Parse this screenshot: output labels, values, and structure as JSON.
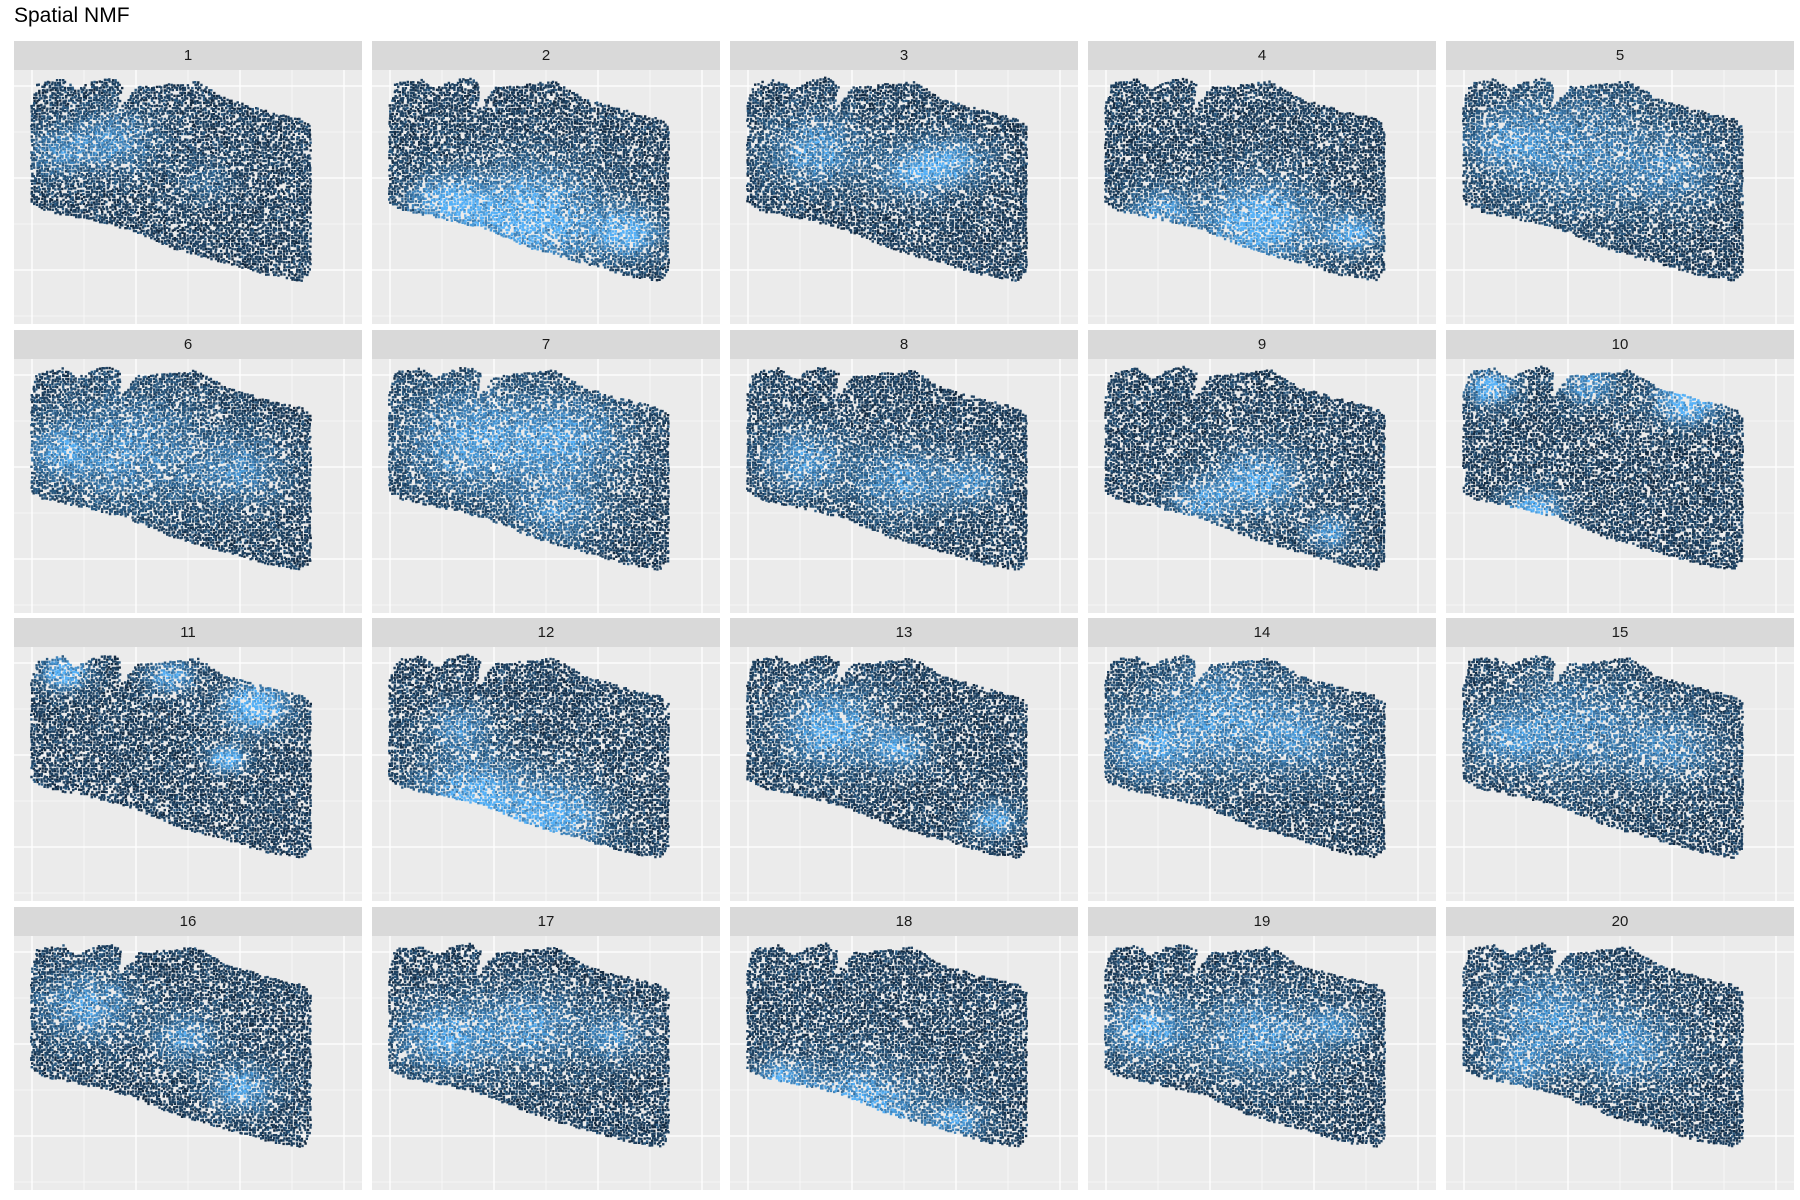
{
  "title": "Spatial NMF",
  "chart_data": {
    "type": "scatter",
    "title": "Spatial NMF",
    "xlabel": "",
    "ylabel": "",
    "grid": true,
    "legend": "none",
    "color_scale": {
      "low": "#132b43",
      "high": "#56b1f7"
    },
    "facets": [
      {
        "label": "1",
        "high_regions": [
          [
            0.3,
            0.3,
            0.18,
            0.5
          ],
          [
            0.1,
            0.35,
            0.14,
            0.45
          ],
          [
            0.62,
            0.5,
            0.12,
            0.25
          ]
        ]
      },
      {
        "label": "2",
        "high_regions": [
          [
            0.5,
            0.68,
            0.3,
            0.85
          ],
          [
            0.2,
            0.6,
            0.16,
            0.7
          ],
          [
            0.85,
            0.75,
            0.14,
            0.8
          ]
        ]
      },
      {
        "label": "3",
        "high_regions": [
          [
            0.25,
            0.35,
            0.2,
            0.6
          ],
          [
            0.6,
            0.45,
            0.16,
            0.6
          ],
          [
            0.75,
            0.4,
            0.14,
            0.55
          ]
        ]
      },
      {
        "label": "4",
        "high_regions": [
          [
            0.55,
            0.7,
            0.24,
            0.85
          ],
          [
            0.2,
            0.65,
            0.14,
            0.6
          ],
          [
            0.88,
            0.75,
            0.12,
            0.7
          ]
        ]
      },
      {
        "label": "5",
        "high_regions": [
          [
            0.4,
            0.35,
            0.35,
            0.45
          ],
          [
            0.75,
            0.45,
            0.22,
            0.4
          ],
          [
            0.15,
            0.3,
            0.18,
            0.4
          ]
        ]
      },
      {
        "label": "6",
        "high_regions": [
          [
            0.35,
            0.4,
            0.32,
            0.5
          ],
          [
            0.75,
            0.5,
            0.2,
            0.45
          ],
          [
            0.1,
            0.4,
            0.15,
            0.45
          ]
        ]
      },
      {
        "label": "7",
        "high_regions": [
          [
            0.3,
            0.35,
            0.3,
            0.6
          ],
          [
            0.65,
            0.35,
            0.26,
            0.55
          ],
          [
            0.6,
            0.7,
            0.2,
            0.45
          ]
        ]
      },
      {
        "label": "8",
        "high_regions": [
          [
            0.2,
            0.45,
            0.18,
            0.6
          ],
          [
            0.55,
            0.55,
            0.2,
            0.55
          ],
          [
            0.8,
            0.55,
            0.14,
            0.5
          ]
        ]
      },
      {
        "label": "9",
        "high_regions": [
          [
            0.55,
            0.55,
            0.18,
            0.7
          ],
          [
            0.35,
            0.65,
            0.14,
            0.55
          ],
          [
            0.8,
            0.8,
            0.1,
            0.6
          ]
        ]
      },
      {
        "label": "10",
        "high_regions": [
          [
            0.1,
            0.1,
            0.1,
            0.9
          ],
          [
            0.8,
            0.15,
            0.14,
            0.95
          ],
          [
            0.25,
            0.7,
            0.12,
            0.85
          ],
          [
            0.45,
            0.08,
            0.12,
            0.6
          ]
        ]
      },
      {
        "label": "11",
        "high_regions": [
          [
            0.8,
            0.25,
            0.14,
            0.95
          ],
          [
            0.12,
            0.08,
            0.1,
            0.85
          ],
          [
            0.7,
            0.5,
            0.08,
            0.9
          ],
          [
            0.5,
            0.1,
            0.1,
            0.7
          ]
        ]
      },
      {
        "label": "12",
        "high_regions": [
          [
            0.3,
            0.7,
            0.24,
            0.8
          ],
          [
            0.6,
            0.78,
            0.2,
            0.75
          ],
          [
            0.25,
            0.35,
            0.14,
            0.5
          ]
        ]
      },
      {
        "label": "13",
        "high_regions": [
          [
            0.3,
            0.35,
            0.22,
            0.7
          ],
          [
            0.55,
            0.45,
            0.12,
            0.6
          ],
          [
            0.88,
            0.8,
            0.1,
            0.7
          ]
        ]
      },
      {
        "label": "14",
        "high_regions": [
          [
            0.4,
            0.3,
            0.32,
            0.55
          ],
          [
            0.15,
            0.45,
            0.18,
            0.5
          ],
          [
            0.7,
            0.4,
            0.2,
            0.45
          ]
        ]
      },
      {
        "label": "15",
        "high_regions": [
          [
            0.4,
            0.35,
            0.3,
            0.5
          ],
          [
            0.75,
            0.45,
            0.2,
            0.45
          ],
          [
            0.15,
            0.4,
            0.16,
            0.45
          ]
        ]
      },
      {
        "label": "16",
        "high_regions": [
          [
            0.2,
            0.3,
            0.2,
            0.6
          ],
          [
            0.55,
            0.45,
            0.14,
            0.55
          ],
          [
            0.75,
            0.7,
            0.14,
            0.65
          ]
        ]
      },
      {
        "label": "17",
        "high_regions": [
          [
            0.2,
            0.45,
            0.2,
            0.65
          ],
          [
            0.5,
            0.4,
            0.22,
            0.55
          ],
          [
            0.8,
            0.45,
            0.14,
            0.5
          ]
        ]
      },
      {
        "label": "18",
        "high_regions": [
          [
            0.4,
            0.82,
            0.26,
            0.85
          ],
          [
            0.12,
            0.65,
            0.12,
            0.6
          ],
          [
            0.75,
            0.85,
            0.12,
            0.6
          ]
        ]
      },
      {
        "label": "19",
        "high_regions": [
          [
            0.15,
            0.4,
            0.18,
            0.7
          ],
          [
            0.55,
            0.45,
            0.24,
            0.6
          ],
          [
            0.82,
            0.4,
            0.12,
            0.5
          ]
        ]
      },
      {
        "label": "20",
        "high_regions": [
          [
            0.3,
            0.35,
            0.26,
            0.55
          ],
          [
            0.6,
            0.5,
            0.22,
            0.5
          ],
          [
            0.2,
            0.6,
            0.14,
            0.45
          ]
        ]
      }
    ]
  }
}
